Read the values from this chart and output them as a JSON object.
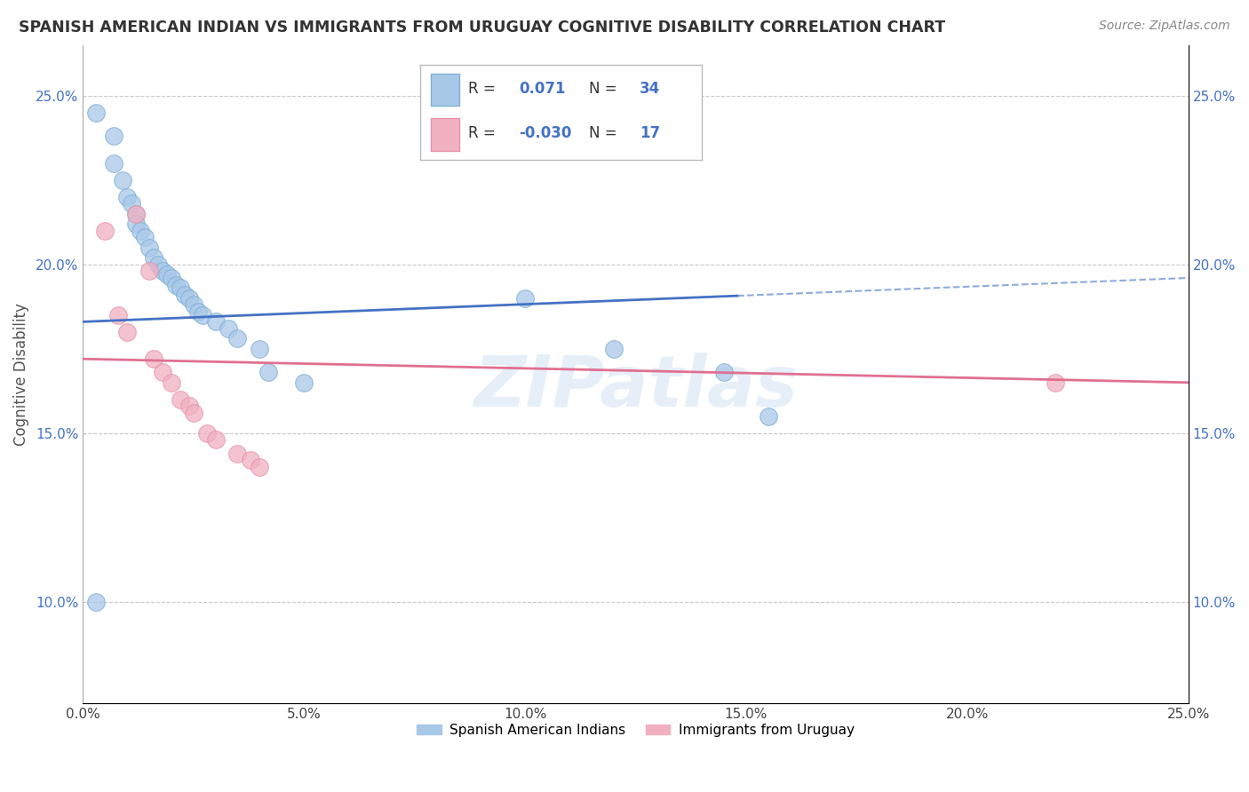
{
  "title": "SPANISH AMERICAN INDIAN VS IMMIGRANTS FROM URUGUAY COGNITIVE DISABILITY CORRELATION CHART",
  "source": "Source: ZipAtlas.com",
  "ylabel": "Cognitive Disability",
  "xlim": [
    0.0,
    0.25
  ],
  "ylim": [
    0.07,
    0.265
  ],
  "yticks": [
    0.1,
    0.15,
    0.2,
    0.25
  ],
  "xticks": [
    0.0,
    0.05,
    0.1,
    0.15,
    0.2,
    0.25
  ],
  "xtick_labels": [
    "0.0%",
    "5.0%",
    "10.0%",
    "15.0%",
    "20.0%",
    "25.0%"
  ],
  "ytick_labels": [
    "10.0%",
    "15.0%",
    "20.0%",
    "25.0%"
  ],
  "right_ytick_labels": [
    "10.0%",
    "15.0%",
    "20.0%",
    "25.0%"
  ],
  "grid_color": "#c8c8c8",
  "background_color": "#ffffff",
  "blue_color": "#a8c8e8",
  "pink_color": "#f0b0c0",
  "blue_edge_color": "#7aaed6",
  "pink_edge_color": "#e890a8",
  "blue_line_color": "#4472c4",
  "pink_line_color": "#e07090",
  "label1": "Spanish American Indians",
  "label2": "Immigrants from Uruguay",
  "watermark": "ZIPatlas",
  "legend_r1": "0.071",
  "legend_n1": "34",
  "legend_r2": "-0.030",
  "legend_n2": "17",
  "blue_scatter_x": [
    0.003,
    0.007,
    0.007,
    0.009,
    0.01,
    0.011,
    0.012,
    0.012,
    0.013,
    0.014,
    0.015,
    0.016,
    0.017,
    0.018,
    0.019,
    0.02,
    0.021,
    0.022,
    0.023,
    0.024,
    0.025,
    0.026,
    0.027,
    0.03,
    0.033,
    0.035,
    0.04,
    0.042,
    0.05,
    0.1,
    0.12,
    0.145,
    0.155,
    0.003
  ],
  "blue_scatter_y": [
    0.245,
    0.238,
    0.23,
    0.225,
    0.22,
    0.218,
    0.215,
    0.212,
    0.21,
    0.208,
    0.205,
    0.202,
    0.2,
    0.198,
    0.197,
    0.196,
    0.194,
    0.193,
    0.191,
    0.19,
    0.188,
    0.186,
    0.185,
    0.183,
    0.181,
    0.178,
    0.175,
    0.168,
    0.165,
    0.19,
    0.175,
    0.168,
    0.155,
    0.1
  ],
  "pink_scatter_x": [
    0.005,
    0.008,
    0.01,
    0.012,
    0.015,
    0.016,
    0.018,
    0.02,
    0.022,
    0.024,
    0.025,
    0.028,
    0.03,
    0.035,
    0.038,
    0.04,
    0.22
  ],
  "pink_scatter_y": [
    0.21,
    0.185,
    0.18,
    0.215,
    0.198,
    0.172,
    0.168,
    0.165,
    0.16,
    0.158,
    0.156,
    0.15,
    0.148,
    0.144,
    0.142,
    0.14,
    0.165
  ],
  "blue_line_x0": 0.0,
  "blue_line_x1": 0.25,
  "blue_line_y0": 0.183,
  "blue_line_y1": 0.196,
  "pink_line_x0": 0.0,
  "pink_line_x1": 0.25,
  "pink_line_y0": 0.172,
  "pink_line_y1": 0.165,
  "dash_line_x0": 0.148,
  "dash_line_x1": 0.25,
  "dash_line_y0": 0.196,
  "dash_line_y1": 0.205
}
